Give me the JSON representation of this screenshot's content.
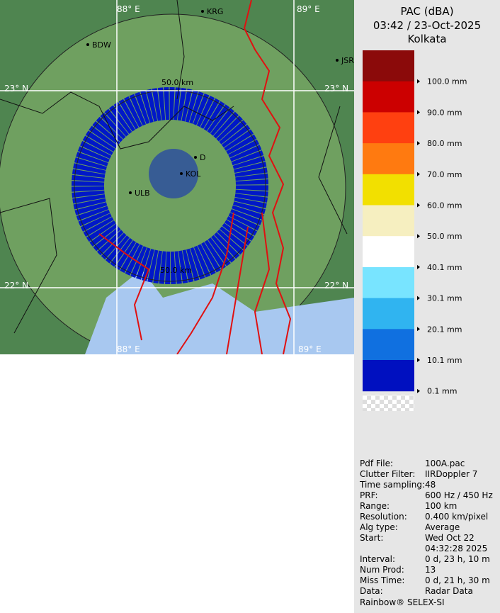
{
  "header": {
    "product": "PAC (dBA)",
    "time": "03:42 / 23-Oct-2025",
    "station": "Kolkata"
  },
  "legend": [
    {
      "label": null,
      "color": "#8b0a0a"
    },
    {
      "label": "100.0 mm",
      "color": "#cc0000"
    },
    {
      "label": "90.0 mm",
      "color": "#ff4010"
    },
    {
      "label": "80.0 mm",
      "color": "#ff7a10"
    },
    {
      "label": "70.0 mm",
      "color": "#f2e000"
    },
    {
      "label": "60.0 mm",
      "color": "#f6efc0"
    },
    {
      "label": "50.0 mm",
      "color": "#ffffff"
    },
    {
      "label": "40.1 mm",
      "color": "#78e4ff"
    },
    {
      "label": "30.1 mm",
      "color": "#30b4f0"
    },
    {
      "label": "20.1 mm",
      "color": "#1070e0"
    },
    {
      "label": "10.1 mm",
      "color": "#0010c0"
    },
    {
      "label": "0.1 mm",
      "color": null
    }
  ],
  "map": {
    "places": [
      "KRG",
      "BDW",
      "JSR",
      "ULB",
      "KOL",
      "D"
    ],
    "range_labels": [
      "50.0 km",
      "50.0 km"
    ],
    "grid_labels": [
      "88° E",
      "89° E",
      "23° N",
      "23° N",
      "22° N",
      "22° N",
      "88° E",
      "89° E"
    ]
  },
  "info": [
    [
      "Pdf File:",
      "100A.pac"
    ],
    [
      "Clutter Filter:",
      "IIRDoppler 7"
    ],
    [
      "Time sampling:",
      "48"
    ],
    [
      "PRF:",
      "600 Hz / 450 Hz"
    ],
    [
      "Range:",
      "100 km"
    ],
    [
      "Resolution:",
      "0.400 km/pixel"
    ],
    [
      "Alg type:",
      "Average"
    ],
    [
      "Start:",
      "Wed Oct 22",
      "04:32:28 2025"
    ],
    [
      "Interval:",
      "0 d, 23 h, 10 m"
    ],
    [
      "Num Prod:",
      "13"
    ],
    [
      "Miss Time:",
      "0 d, 21 h, 30 m"
    ],
    [
      "Data:",
      "Radar Data"
    ]
  ],
  "footer": "Rainbow® SELEX-SI"
}
